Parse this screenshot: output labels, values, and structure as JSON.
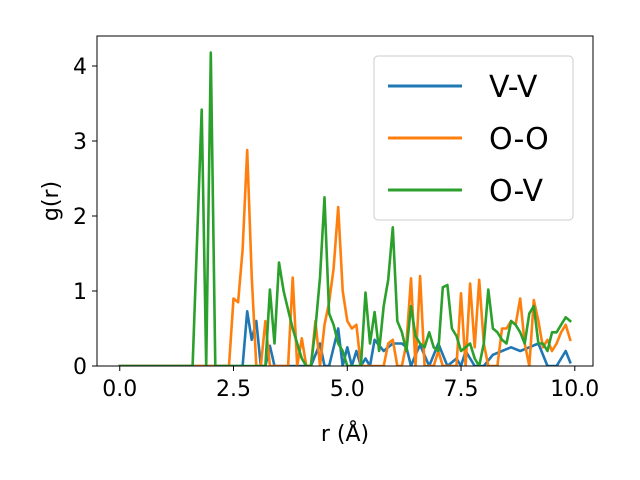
{
  "chart_data": {
    "type": "line",
    "title": "",
    "xlabel": "r (Å)",
    "ylabel": "g(r)",
    "xlim": [
      -0.5,
      10.4
    ],
    "ylim": [
      0,
      4.4
    ],
    "xticks": [
      0.0,
      2.5,
      5.0,
      7.5,
      10.0
    ],
    "xtick_labels": [
      "0.0",
      "2.5",
      "5.0",
      "7.5",
      "10.0"
    ],
    "yticks": [
      0,
      1,
      2,
      3,
      4
    ],
    "ytick_labels": [
      "0",
      "1",
      "2",
      "3",
      "4"
    ],
    "grid": false,
    "legend_position": "top-right",
    "series": [
      {
        "name": "V-V",
        "color": "#1f77b4",
        "x": [
          0.0,
          2.5,
          2.7,
          2.8,
          2.9,
          3.0,
          3.1,
          3.2,
          3.3,
          3.4,
          3.5,
          3.6,
          3.8,
          4.0,
          4.2,
          4.4,
          4.5,
          4.6,
          4.8,
          4.9,
          5.0,
          5.1,
          5.2,
          5.3,
          5.4,
          5.5,
          5.6,
          5.8,
          6.0,
          6.2,
          6.3,
          6.4,
          6.5,
          6.6,
          6.8,
          7.0,
          7.2,
          7.4,
          7.5,
          7.6,
          7.8,
          8.0,
          8.2,
          8.4,
          8.6,
          8.8,
          9.0,
          9.2,
          9.4,
          9.6,
          9.8,
          9.9
        ],
        "values": [
          0.0,
          0.0,
          0.0,
          0.73,
          0.35,
          0.6,
          0.0,
          0.0,
          0.27,
          0.0,
          0.0,
          0.0,
          0.0,
          0.0,
          0.0,
          0.3,
          0.0,
          0.0,
          0.5,
          0.0,
          0.25,
          0.0,
          0.2,
          0.0,
          0.1,
          0.0,
          0.35,
          0.2,
          0.3,
          0.3,
          0.25,
          0.0,
          0.15,
          0.28,
          0.0,
          0.3,
          0.0,
          0.1,
          0.0,
          0.2,
          0.0,
          0.0,
          0.15,
          0.2,
          0.25,
          0.2,
          0.25,
          0.3,
          0.0,
          0.0,
          0.2,
          0.05
        ]
      },
      {
        "name": "O-O",
        "color": "#ff7f0e",
        "x": [
          0.0,
          2.4,
          2.5,
          2.6,
          2.7,
          2.8,
          2.9,
          3.0,
          3.1,
          3.2,
          3.3,
          3.4,
          3.5,
          3.6,
          3.7,
          3.8,
          3.9,
          4.0,
          4.1,
          4.2,
          4.3,
          4.4,
          4.5,
          4.6,
          4.7,
          4.8,
          4.9,
          5.0,
          5.1,
          5.2,
          5.3,
          5.4,
          5.5,
          5.6,
          5.7,
          5.8,
          5.9,
          6.0,
          6.1,
          6.2,
          6.3,
          6.4,
          6.5,
          6.6,
          6.7,
          6.8,
          6.9,
          7.0,
          7.1,
          7.2,
          7.3,
          7.4,
          7.5,
          7.6,
          7.7,
          7.8,
          7.9,
          8.0,
          8.1,
          8.2,
          8.3,
          8.4,
          8.5,
          8.6,
          8.7,
          8.8,
          8.9,
          9.0,
          9.1,
          9.2,
          9.3,
          9.4,
          9.5,
          9.6,
          9.7,
          9.8,
          9.9
        ],
        "values": [
          0.0,
          0.0,
          0.9,
          0.85,
          1.55,
          2.88,
          1.2,
          0.0,
          0.0,
          0.6,
          0.0,
          0.0,
          0.0,
          0.0,
          0.0,
          1.18,
          0.0,
          0.37,
          0.0,
          0.0,
          0.6,
          0.0,
          0.55,
          0.85,
          1.3,
          2.12,
          1.0,
          0.6,
          0.5,
          0.55,
          0.0,
          0.0,
          0.0,
          0.0,
          0.0,
          0.0,
          0.3,
          0.35,
          0.0,
          0.0,
          0.3,
          1.17,
          0.0,
          1.2,
          0.0,
          0.0,
          0.0,
          0.2,
          0.0,
          0.0,
          0.0,
          0.0,
          0.97,
          0.0,
          1.1,
          0.25,
          1.15,
          0.3,
          0.0,
          0.0,
          0.0,
          0.5,
          0.5,
          0.6,
          0.55,
          0.9,
          0.3,
          0.0,
          0.88,
          0.6,
          0.25,
          0.35,
          0.2,
          0.3,
          0.45,
          0.55,
          0.35
        ]
      },
      {
        "name": "O-V",
        "color": "#2ca02c",
        "x": [
          0.0,
          1.6,
          1.8,
          1.9,
          2.0,
          2.1,
          2.2,
          3.0,
          3.1,
          3.2,
          3.3,
          3.4,
          3.5,
          3.6,
          3.7,
          3.8,
          3.9,
          4.0,
          4.1,
          4.2,
          4.3,
          4.4,
          4.5,
          4.6,
          4.7,
          4.8,
          4.9,
          5.0,
          5.1,
          5.2,
          5.3,
          5.4,
          5.5,
          5.6,
          5.7,
          5.8,
          5.9,
          6.0,
          6.1,
          6.2,
          6.3,
          6.4,
          6.5,
          6.6,
          6.7,
          6.8,
          6.9,
          7.0,
          7.1,
          7.2,
          7.3,
          7.4,
          7.5,
          7.6,
          7.7,
          7.8,
          7.9,
          8.0,
          8.1,
          8.2,
          8.3,
          8.4,
          8.5,
          8.6,
          8.7,
          8.8,
          8.9,
          9.0,
          9.1,
          9.2,
          9.3,
          9.4,
          9.5,
          9.6,
          9.7,
          9.8,
          9.9
        ],
        "values": [
          0.0,
          0.0,
          3.42,
          0.0,
          4.18,
          0.0,
          0.0,
          0.0,
          0.0,
          0.0,
          1.02,
          0.3,
          1.38,
          1.0,
          0.75,
          0.5,
          0.3,
          0.1,
          0.0,
          0.0,
          0.5,
          1.18,
          2.25,
          0.7,
          0.55,
          0.3,
          0.2,
          0.0,
          0.0,
          0.0,
          0.0,
          0.98,
          0.3,
          0.72,
          0.2,
          0.8,
          1.15,
          1.85,
          0.6,
          0.45,
          0.2,
          0.8,
          0.4,
          0.3,
          0.25,
          0.45,
          0.25,
          0.2,
          1.05,
          1.08,
          0.5,
          0.4,
          0.2,
          0.25,
          0.3,
          0.1,
          0.0,
          0.3,
          1.02,
          0.5,
          0.45,
          0.35,
          0.3,
          0.6,
          0.55,
          0.45,
          0.3,
          0.7,
          0.8,
          0.3,
          0.3,
          0.2,
          0.45,
          0.45,
          0.55,
          0.65,
          0.6
        ]
      }
    ]
  }
}
